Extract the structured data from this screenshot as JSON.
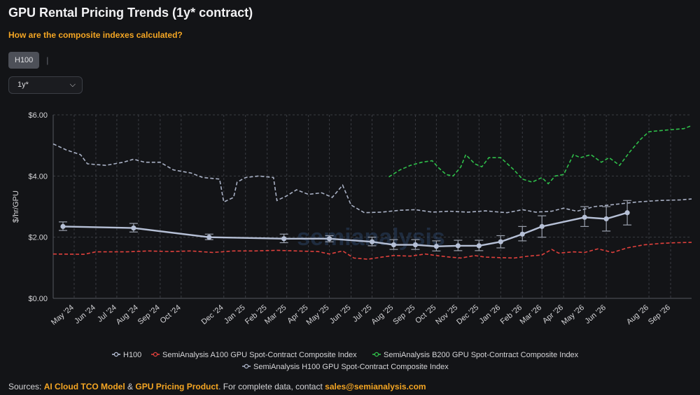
{
  "title": "GPU Rental Pricing Trends (1y* contract)",
  "question_link": "How are the composite indexes calculated?",
  "tabs": [
    {
      "label": "H100",
      "active": true
    }
  ],
  "tab_separator": "|",
  "contract_select": {
    "value": "1y*"
  },
  "footer": {
    "prefix": "Sources: ",
    "source1": "AI Cloud TCO Model",
    "amp": " & ",
    "source2": "GPU Pricing Product",
    "middle": ". For complete data, contact ",
    "email": "sales@semianalysis.com"
  },
  "colors": {
    "h100": "#b6c0d6",
    "a100": "#e0403c",
    "b200": "#2fbf4a",
    "h100_index": "#a8b0c4",
    "accent": "#f5a623"
  },
  "watermark": "semianalysis",
  "chart_data": {
    "type": "line",
    "ylabel": "$/hr/GPU",
    "ylim": [
      0,
      6
    ],
    "yticks": [
      0,
      2,
      4,
      6
    ],
    "ytick_labels": [
      "$0.00",
      "$2.00",
      "$4.00",
      "$6.00"
    ],
    "xlim": [
      "2024-04-01",
      "2026-10-01"
    ],
    "xticks": [
      "2024-05-01",
      "2024-06-01",
      "2024-07-01",
      "2024-08-01",
      "2024-09-01",
      "2024-10-01",
      "2024-12-01",
      "2025-01-01",
      "2025-02-01",
      "2025-03-01",
      "2025-04-01",
      "2025-05-01",
      "2025-06-01",
      "2025-07-01",
      "2025-08-01",
      "2025-09-01",
      "2025-10-01",
      "2025-11-01",
      "2025-12-01",
      "2026-01-01",
      "2026-02-01",
      "2026-03-01",
      "2026-04-01",
      "2026-05-01",
      "2026-06-01",
      "2026-08-01",
      "2026-09-01"
    ],
    "xtick_labels": [
      "May '24",
      "Jun '24",
      "Jul '24",
      "Aug '24",
      "Sep '24",
      "Oct '24",
      "Dec '24",
      "Jan '25",
      "Feb '25",
      "Mar '25",
      "Apr '25",
      "May '25",
      "Jun '25",
      "Jul '25",
      "Aug '25",
      "Sep '25",
      "Oct '25",
      "Nov '25",
      "Dec '25",
      "Jan '26",
      "Feb '26",
      "Mar '26",
      "Apr '26",
      "May '26",
      "Jun '26",
      "Aug '26",
      "Sep '26"
    ],
    "grid": true,
    "legend_position": "bottom",
    "series": [
      {
        "name": "H100",
        "style": "solid-markers-errorbars",
        "points": [
          {
            "x": "2024-04-15",
            "y": 2.35,
            "lo": 2.22,
            "hi": 2.5
          },
          {
            "x": "2024-07-25",
            "y": 2.3,
            "lo": 2.17,
            "hi": 2.45
          },
          {
            "x": "2024-11-10",
            "y": 2.0,
            "lo": 1.92,
            "hi": 2.1
          },
          {
            "x": "2025-02-25",
            "y": 1.95,
            "lo": 1.82,
            "hi": 2.1
          },
          {
            "x": "2025-05-01",
            "y": 1.95,
            "lo": 1.85,
            "hi": 2.05
          },
          {
            "x": "2025-07-01",
            "y": 1.85,
            "lo": 1.72,
            "hi": 2.0
          },
          {
            "x": "2025-08-01",
            "y": 1.75,
            "lo": 1.6,
            "hi": 1.92
          },
          {
            "x": "2025-09-01",
            "y": 1.75,
            "lo": 1.6,
            "hi": 1.92
          },
          {
            "x": "2025-10-01",
            "y": 1.7,
            "lo": 1.55,
            "hi": 1.88
          },
          {
            "x": "2025-11-01",
            "y": 1.72,
            "lo": 1.56,
            "hi": 1.9
          },
          {
            "x": "2025-12-01",
            "y": 1.72,
            "lo": 1.56,
            "hi": 1.9
          },
          {
            "x": "2026-01-01",
            "y": 1.85,
            "lo": 1.65,
            "hi": 2.05
          },
          {
            "x": "2026-02-01",
            "y": 2.1,
            "lo": 1.88,
            "hi": 2.35
          },
          {
            "x": "2026-03-01",
            "y": 2.35,
            "lo": 2.0,
            "hi": 2.7
          },
          {
            "x": "2026-05-01",
            "y": 2.65,
            "lo": 2.35,
            "hi": 3.0
          },
          {
            "x": "2026-06-01",
            "y": 2.6,
            "lo": 2.2,
            "hi": 3.0
          },
          {
            "x": "2026-07-01",
            "y": 2.8,
            "lo": 2.4,
            "hi": 3.2
          }
        ]
      },
      {
        "name": "SemiAnalysis A100 GPU Spot-Contract Composite Index",
        "style": "dashed",
        "points": [
          {
            "x": "2024-04-01",
            "y": 1.45
          },
          {
            "x": "2024-05-15",
            "y": 1.44
          },
          {
            "x": "2024-06-01",
            "y": 1.52
          },
          {
            "x": "2024-07-15",
            "y": 1.52
          },
          {
            "x": "2024-08-15",
            "y": 1.55
          },
          {
            "x": "2024-09-15",
            "y": 1.53
          },
          {
            "x": "2024-10-15",
            "y": 1.55
          },
          {
            "x": "2024-11-15",
            "y": 1.5
          },
          {
            "x": "2024-12-15",
            "y": 1.55
          },
          {
            "x": "2025-01-15",
            "y": 1.55
          },
          {
            "x": "2025-02-15",
            "y": 1.57
          },
          {
            "x": "2025-03-15",
            "y": 1.55
          },
          {
            "x": "2025-04-15",
            "y": 1.53
          },
          {
            "x": "2025-05-01",
            "y": 1.45
          },
          {
            "x": "2025-05-20",
            "y": 1.55
          },
          {
            "x": "2025-06-05",
            "y": 1.32
          },
          {
            "x": "2025-06-25",
            "y": 1.28
          },
          {
            "x": "2025-07-15",
            "y": 1.35
          },
          {
            "x": "2025-08-01",
            "y": 1.4
          },
          {
            "x": "2025-08-25",
            "y": 1.38
          },
          {
            "x": "2025-09-15",
            "y": 1.45
          },
          {
            "x": "2025-10-01",
            "y": 1.4
          },
          {
            "x": "2025-10-20",
            "y": 1.35
          },
          {
            "x": "2025-11-05",
            "y": 1.32
          },
          {
            "x": "2025-11-25",
            "y": 1.4
          },
          {
            "x": "2025-12-10",
            "y": 1.35
          },
          {
            "x": "2026-01-01",
            "y": 1.33
          },
          {
            "x": "2026-01-20",
            "y": 1.32
          },
          {
            "x": "2026-02-10",
            "y": 1.38
          },
          {
            "x": "2026-03-01",
            "y": 1.42
          },
          {
            "x": "2026-03-15",
            "y": 1.6
          },
          {
            "x": "2026-03-25",
            "y": 1.48
          },
          {
            "x": "2026-04-15",
            "y": 1.52
          },
          {
            "x": "2026-05-01",
            "y": 1.5
          },
          {
            "x": "2026-05-20",
            "y": 1.62
          },
          {
            "x": "2026-06-10",
            "y": 1.5
          },
          {
            "x": "2026-07-01",
            "y": 1.65
          },
          {
            "x": "2026-07-25",
            "y": 1.75
          },
          {
            "x": "2026-08-20",
            "y": 1.8
          },
          {
            "x": "2026-09-10",
            "y": 1.82
          },
          {
            "x": "2026-10-01",
            "y": 1.83
          }
        ]
      },
      {
        "name": "SemiAnalysis B200 GPU Spot-Contract Composite Index",
        "style": "dashed",
        "points": [
          {
            "x": "2025-07-25",
            "y": 3.97
          },
          {
            "x": "2025-08-10",
            "y": 4.2
          },
          {
            "x": "2025-08-25",
            "y": 4.35
          },
          {
            "x": "2025-09-10",
            "y": 4.45
          },
          {
            "x": "2025-09-25",
            "y": 4.5
          },
          {
            "x": "2025-10-05",
            "y": 4.25
          },
          {
            "x": "2025-10-15",
            "y": 4.05
          },
          {
            "x": "2025-10-25",
            "y": 4.0
          },
          {
            "x": "2025-11-05",
            "y": 4.3
          },
          {
            "x": "2025-11-12",
            "y": 4.7
          },
          {
            "x": "2025-11-25",
            "y": 4.4
          },
          {
            "x": "2025-12-05",
            "y": 4.3
          },
          {
            "x": "2025-12-15",
            "y": 4.6
          },
          {
            "x": "2026-01-01",
            "y": 4.6
          },
          {
            "x": "2026-01-20",
            "y": 4.2
          },
          {
            "x": "2026-02-01",
            "y": 3.9
          },
          {
            "x": "2026-02-15",
            "y": 3.8
          },
          {
            "x": "2026-03-01",
            "y": 3.95
          },
          {
            "x": "2026-03-10",
            "y": 3.75
          },
          {
            "x": "2026-03-20",
            "y": 4.0
          },
          {
            "x": "2026-04-01",
            "y": 4.05
          },
          {
            "x": "2026-04-15",
            "y": 4.7
          },
          {
            "x": "2026-04-25",
            "y": 4.6
          },
          {
            "x": "2026-05-10",
            "y": 4.7
          },
          {
            "x": "2026-05-25",
            "y": 4.45
          },
          {
            "x": "2026-06-05",
            "y": 4.6
          },
          {
            "x": "2026-06-20",
            "y": 4.35
          },
          {
            "x": "2026-07-05",
            "y": 4.8
          },
          {
            "x": "2026-07-20",
            "y": 5.2
          },
          {
            "x": "2026-08-01",
            "y": 5.45
          },
          {
            "x": "2026-08-25",
            "y": 5.5
          },
          {
            "x": "2026-09-20",
            "y": 5.55
          },
          {
            "x": "2026-10-01",
            "y": 5.65
          }
        ]
      },
      {
        "name": "SemiAnalysis H100 GPU Spot-Contract Composite Index",
        "style": "dashed",
        "points": [
          {
            "x": "2024-04-01",
            "y": 5.05
          },
          {
            "x": "2024-04-20",
            "y": 4.85
          },
          {
            "x": "2024-05-10",
            "y": 4.7
          },
          {
            "x": "2024-05-20",
            "y": 4.4
          },
          {
            "x": "2024-06-15",
            "y": 4.35
          },
          {
            "x": "2024-07-10",
            "y": 4.45
          },
          {
            "x": "2024-07-25",
            "y": 4.55
          },
          {
            "x": "2024-08-10",
            "y": 4.45
          },
          {
            "x": "2024-09-01",
            "y": 4.45
          },
          {
            "x": "2024-09-20",
            "y": 4.2
          },
          {
            "x": "2024-10-15",
            "y": 4.1
          },
          {
            "x": "2024-11-01",
            "y": 3.95
          },
          {
            "x": "2024-11-25",
            "y": 3.9
          },
          {
            "x": "2024-12-01",
            "y": 3.15
          },
          {
            "x": "2024-12-15",
            "y": 3.3
          },
          {
            "x": "2024-12-20",
            "y": 3.8
          },
          {
            "x": "2025-01-01",
            "y": 3.95
          },
          {
            "x": "2025-01-20",
            "y": 4.0
          },
          {
            "x": "2025-02-10",
            "y": 3.95
          },
          {
            "x": "2025-02-15",
            "y": 3.2
          },
          {
            "x": "2025-03-01",
            "y": 3.35
          },
          {
            "x": "2025-03-15",
            "y": 3.55
          },
          {
            "x": "2025-04-01",
            "y": 3.4
          },
          {
            "x": "2025-04-20",
            "y": 3.45
          },
          {
            "x": "2025-05-05",
            "y": 3.3
          },
          {
            "x": "2025-05-20",
            "y": 3.7
          },
          {
            "x": "2025-06-01",
            "y": 3.05
          },
          {
            "x": "2025-06-20",
            "y": 2.8
          },
          {
            "x": "2025-07-15",
            "y": 2.82
          },
          {
            "x": "2025-08-10",
            "y": 2.88
          },
          {
            "x": "2025-09-01",
            "y": 2.9
          },
          {
            "x": "2025-09-25",
            "y": 2.82
          },
          {
            "x": "2025-10-20",
            "y": 2.85
          },
          {
            "x": "2025-11-15",
            "y": 2.82
          },
          {
            "x": "2025-12-10",
            "y": 2.86
          },
          {
            "x": "2026-01-10",
            "y": 2.8
          },
          {
            "x": "2026-02-01",
            "y": 2.9
          },
          {
            "x": "2026-02-20",
            "y": 2.82
          },
          {
            "x": "2026-03-15",
            "y": 2.85
          },
          {
            "x": "2026-04-01",
            "y": 2.95
          },
          {
            "x": "2026-04-20",
            "y": 2.85
          },
          {
            "x": "2026-05-15",
            "y": 3.0
          },
          {
            "x": "2026-06-05",
            "y": 3.05
          },
          {
            "x": "2026-06-25",
            "y": 3.1
          },
          {
            "x": "2026-07-15",
            "y": 3.15
          },
          {
            "x": "2026-08-15",
            "y": 3.2
          },
          {
            "x": "2026-09-15",
            "y": 3.22
          },
          {
            "x": "2026-10-01",
            "y": 3.25
          }
        ]
      }
    ]
  }
}
